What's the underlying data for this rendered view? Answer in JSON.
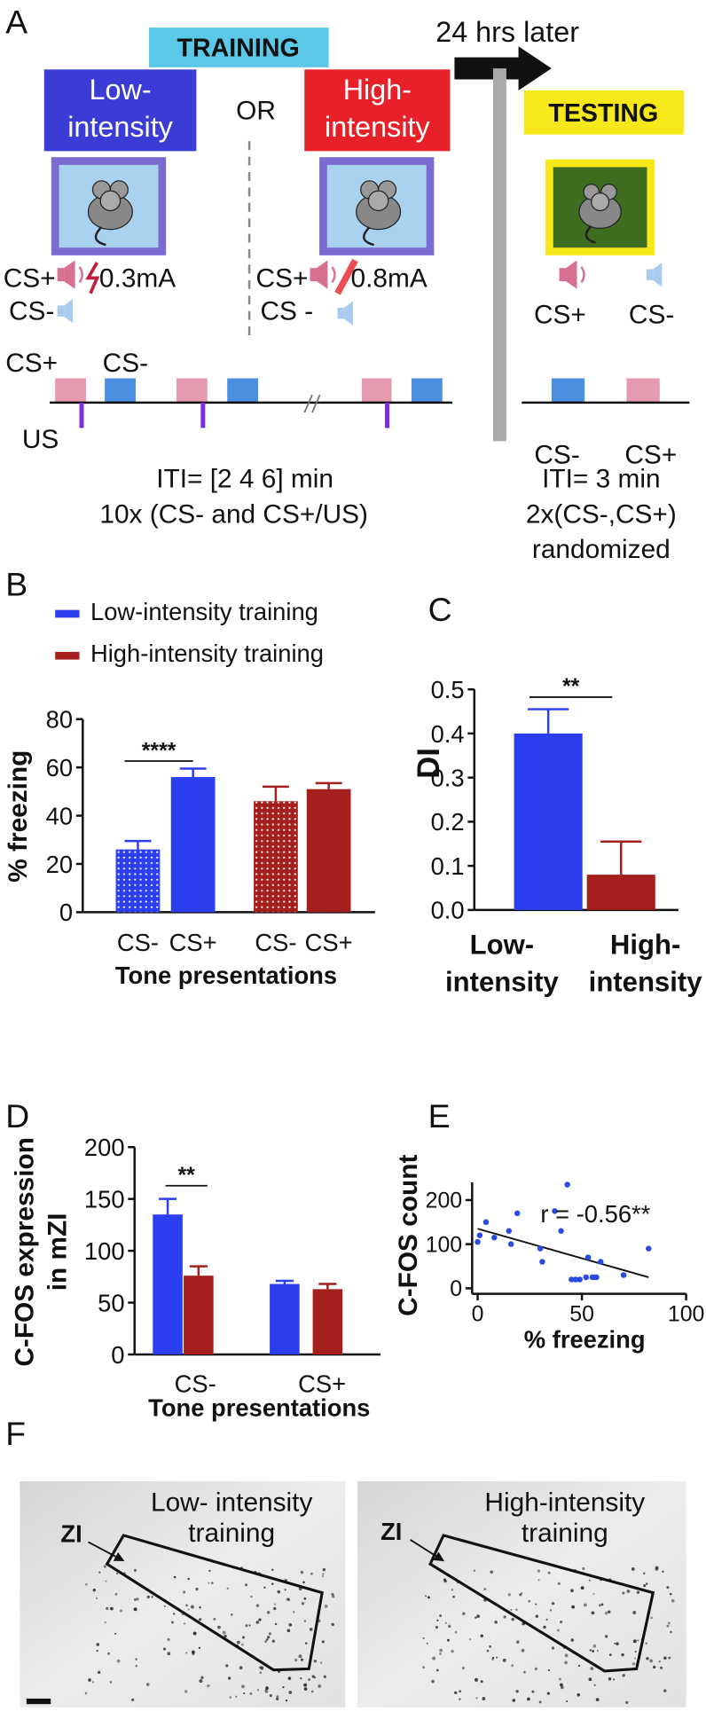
{
  "panel_a": {
    "label": "A",
    "training": "TRAINING",
    "low": "Low-\nintensity",
    "or": "OR",
    "high": "High-\nintensity",
    "delay": "24 hrs later",
    "testing": "TESTING",
    "low_cs_plus": "CS+",
    "low_shock": "0.3mA",
    "low_cs_minus": "CS-",
    "high_cs_plus": "CS+",
    "high_shock": "0.8mA",
    "high_cs_minus": "CS -",
    "test_cs_plus": "CS+",
    "test_cs_minus": "CS-",
    "timeline_cs_plus": "CS+",
    "timeline_cs_minus": "CS-",
    "us": "US",
    "test_order": [
      "CS-",
      "CS+"
    ],
    "training_iti": "ITI= [2 4 6] min",
    "training_reps": "10x (CS- and CS+/US)",
    "testing_iti": "ITI= 3 min",
    "testing_reps": "2x(CS-,CS+)",
    "testing_note": "randomized"
  },
  "chart_data": [
    {
      "type": "bar",
      "panel_label": "B",
      "categories": [
        "CS-",
        "CS+"
      ],
      "series": [
        {
          "name": "Low-intensity training",
          "color": "#2b3ef0",
          "values": [
            26,
            56
          ],
          "errors": [
            3.5,
            3.5
          ]
        },
        {
          "name": "High-intensity training",
          "color": "#a5201c",
          "values": [
            46,
            51
          ],
          "errors": [
            6,
            2.5
          ]
        }
      ],
      "category_patterns": [
        "dots",
        "solid"
      ],
      "xlabel": "Tone presentations",
      "ylabel": "% freezing",
      "ylim": [
        0,
        80
      ],
      "yticks": [
        0,
        20,
        40,
        60,
        80
      ],
      "annotation": "****",
      "legend": "top-left"
    },
    {
      "type": "bar",
      "panel_label": "C",
      "categories": [
        "Low-\nintensity",
        "High-\nintensity"
      ],
      "values": [
        0.4,
        0.08
      ],
      "errors": [
        0.055,
        0.075
      ],
      "colors": [
        "#2b3ef0",
        "#a5201c"
      ],
      "ylabel": "DI",
      "ylim": [
        0,
        0.5
      ],
      "yticks": [
        {
          "value": 0,
          "label": "0.0"
        },
        0.1,
        0.2,
        0.3,
        0.4,
        0.5
      ],
      "annotation": "**"
    },
    {
      "type": "bar",
      "panel_label": "D",
      "categories": [
        "CS-",
        "CS+"
      ],
      "series": [
        {
          "color": "#2b3ef0",
          "values": [
            135,
            68
          ],
          "errors": [
            15,
            3
          ]
        },
        {
          "color": "#a5201c",
          "values": [
            76,
            63
          ],
          "errors": [
            9,
            5
          ]
        }
      ],
      "xlabel": "Tone presentations",
      "ylabel": "C-FOS expression\nin mZI",
      "ylim": [
        0,
        200
      ],
      "yticks": [
        0,
        50,
        100,
        150,
        200
      ],
      "annotation": "**"
    },
    {
      "type": "scatter",
      "panel_label": "E",
      "x": [
        0,
        1,
        4,
        8,
        15,
        16,
        19,
        30,
        31,
        37,
        40,
        43,
        45,
        47,
        49,
        52,
        53,
        55,
        56,
        57,
        59,
        70,
        82
      ],
      "y": [
        105,
        120,
        150,
        115,
        130,
        100,
        170,
        90,
        60,
        175,
        130,
        235,
        20,
        20,
        20,
        25,
        70,
        25,
        25,
        25,
        60,
        30,
        90
      ],
      "color": "#2a4be0",
      "trendline": {
        "x": [
          0,
          82
        ],
        "y": [
          135,
          25
        ]
      },
      "xlabel": "% freezing",
      "ylabel": "C-FOS count",
      "xlim": [
        0,
        100
      ],
      "xticks": [
        0,
        50,
        100
      ],
      "ylim": [
        0,
        240
      ],
      "yticks": [
        0,
        100,
        200
      ],
      "annotation": "r = -0.56**"
    }
  ],
  "panel_f": {
    "label": "F",
    "left": {
      "caption": "Low- intensity\ntraining",
      "region": "ZI"
    },
    "right": {
      "caption": "High-intensity\ntraining",
      "region": "ZI"
    }
  }
}
